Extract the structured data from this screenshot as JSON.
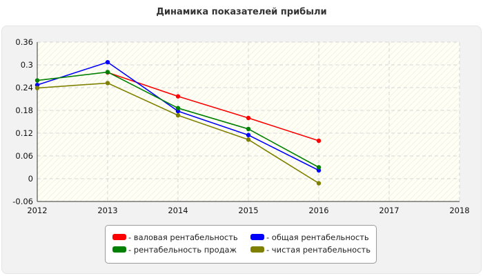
{
  "chart_data": {
    "type": "line",
    "title": "Динамика показателей прибыли",
    "x_ticks": [
      "2012",
      "2013",
      "2014",
      "2015",
      "2016",
      "2017",
      "2018"
    ],
    "xlim": [
      2012,
      2018
    ],
    "ylim": [
      -0.06,
      0.36
    ],
    "y_ticks": [
      -0.06,
      0,
      0.06,
      0.12,
      0.18,
      0.24,
      0.3,
      0.36
    ],
    "y_tick_labels": [
      "-0.06",
      "0",
      "0.06",
      "0.12",
      "0.18",
      "0.24",
      "0.3",
      "0.36"
    ],
    "grid": true,
    "legend_position": "bottom",
    "series": [
      {
        "name": "- валовая рентабельность",
        "color": "#ff0000",
        "x": [
          2013,
          2014,
          2015,
          2016
        ],
        "values": [
          0.28,
          0.217,
          0.16,
          0.1
        ]
      },
      {
        "name": "- общая рентабельность",
        "color": "#0000ff",
        "x": [
          2012,
          2013,
          2014,
          2015,
          2016
        ],
        "values": [
          0.247,
          0.307,
          0.178,
          0.115,
          0.022
        ]
      },
      {
        "name": "- рентабельность продаж",
        "color": "#008000",
        "x": [
          2012,
          2013,
          2014,
          2015,
          2016
        ],
        "values": [
          0.259,
          0.281,
          0.186,
          0.131,
          0.03
        ]
      },
      {
        "name": "- чистая рентабельность",
        "color": "#808000",
        "x": [
          2012,
          2013,
          2014,
          2015,
          2016
        ],
        "values": [
          0.239,
          0.252,
          0.167,
          0.103,
          -0.012
        ]
      }
    ]
  }
}
